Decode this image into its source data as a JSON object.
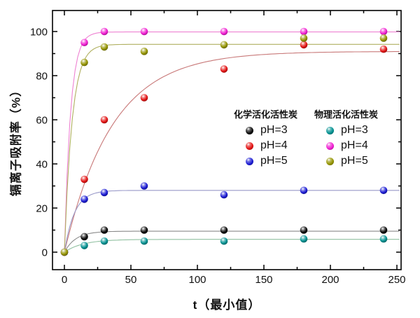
{
  "axes": {
    "x_title": "t（最小值）",
    "y_title": "镉离子吸附率（%）",
    "x_ticks": [
      0,
      50,
      100,
      150,
      200,
      250
    ],
    "x_minor_step": 25,
    "y_ticks": [
      0,
      20,
      40,
      60,
      80,
      100
    ],
    "y_minor_step": 10
  },
  "legend": {
    "groups": [
      {
        "header": "化学活化活性炭",
        "items": [
          {
            "label": "pH=3",
            "series_index": 0
          },
          {
            "label": "pH=4",
            "series_index": 1
          },
          {
            "label": "pH=5",
            "series_index": 2
          }
        ]
      },
      {
        "header": "物理活化活性炭",
        "items": [
          {
            "label": "pH=3",
            "series_index": 3
          },
          {
            "label": "pH=4",
            "series_index": 4
          },
          {
            "label": "pH=5",
            "series_index": 5
          }
        ]
      }
    ]
  },
  "chart_data": {
    "type": "scatter",
    "xlabel": "t（最小值）",
    "ylabel": "镉离子吸附率（%）",
    "xlim": [
      0,
      250
    ],
    "ylim": [
      0,
      100
    ],
    "grid": false,
    "legend_position": "center-right",
    "x": [
      0,
      15,
      30,
      60,
      120,
      180,
      240
    ],
    "series": [
      {
        "name": "化学活化活性炭 pH=3",
        "marker_color": "#0a0a0a",
        "line_color": "#8a8a8a",
        "values": [
          0,
          7,
          10,
          10,
          10,
          10,
          10
        ],
        "fit_curve": {
          "model": "plateau*(1-exp(-t/tau))",
          "plateau": 9.5,
          "tau": 8.5
        }
      },
      {
        "name": "化学活化活性炭 pH=4",
        "marker_color": "#e41414",
        "line_color": "#c87878",
        "values": [
          0,
          33,
          60,
          70,
          83,
          94,
          92
        ],
        "fit_curve": {
          "model": "plateau*(1-exp(-t/tau))",
          "plateau": 91,
          "tau": 36
        }
      },
      {
        "name": "化学活化活性炭 pH=5",
        "marker_color": "#1c1cd4",
        "line_color": "#9898c8",
        "values": [
          0,
          24,
          27,
          30,
          26,
          28,
          28
        ],
        "fit_curve": {
          "model": "plateau*(1-exp(-t/tau))",
          "plateau": 28,
          "tau": 7.5
        }
      },
      {
        "name": "物理活化活性炭 pH=3",
        "marker_color": "#009090",
        "line_color": "#90c0a0",
        "values": [
          0,
          3,
          5,
          5,
          5,
          6,
          6
        ],
        "fit_curve": {
          "model": "plateau*(1-exp(-t/tau))",
          "plateau": 5.8,
          "tau": 14
        }
      },
      {
        "name": "物理活化活性炭 pH=4",
        "marker_color": "#f01ed2",
        "line_color": "#ee82d2",
        "values": [
          0,
          95,
          100,
          100,
          100,
          100,
          100
        ],
        "fit_curve": {
          "model": "plateau*(1-exp(-t/tau))",
          "plateau": 99.8,
          "tau": 4.6
        }
      },
      {
        "name": "物理活化活性炭 pH=5",
        "marker_color": "#949400",
        "line_color": "#b0b060",
        "values": [
          0,
          86,
          93,
          91,
          94,
          97,
          97
        ],
        "fit_curve": {
          "model": "plateau*(1-exp(-t/tau))",
          "plateau": 94.2,
          "tau": 5.8
        }
      }
    ]
  }
}
